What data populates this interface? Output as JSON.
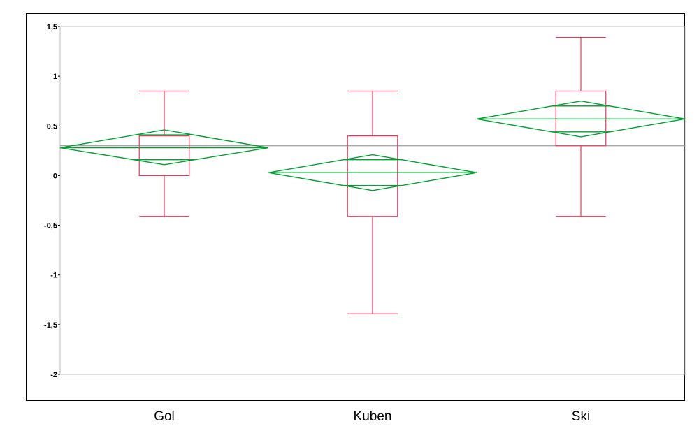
{
  "chart_data": {
    "type": "boxplot",
    "categories": [
      "Gol",
      "Kuben",
      "Ski"
    ],
    "ylim": [
      -2,
      1.5
    ],
    "yticks": [
      {
        "value": 1.5,
        "label": "1,5"
      },
      {
        "value": 1,
        "label": "1"
      },
      {
        "value": 0.5,
        "label": "0,5"
      },
      {
        "value": 0,
        "label": "0"
      },
      {
        "value": -0.5,
        "label": "-0,5"
      },
      {
        "value": -1,
        "label": "-1"
      },
      {
        "value": -1.5,
        "label": "-1,5"
      },
      {
        "value": -2,
        "label": "-2"
      }
    ],
    "grand_mean": 0.3,
    "groups": [
      {
        "name": "Gol",
        "min": -0.41,
        "q1": 0.0,
        "median": 0.4,
        "q3": 0.4,
        "max": 0.85,
        "mean": 0.28,
        "ci": [
          0.11,
          0.46
        ],
        "overlap": [
          0.16,
          0.41
        ]
      },
      {
        "name": "Kuben",
        "min": -1.39,
        "q1": -0.41,
        "median": 0.4,
        "q3": 0.4,
        "max": 0.85,
        "mean": 0.03,
        "ci": [
          -0.15,
          0.21
        ],
        "overlap": [
          -0.1,
          0.16
        ]
      },
      {
        "name": "Ski",
        "min": -0.41,
        "q1": 0.3,
        "median": 0.7,
        "q3": 0.85,
        "max": 1.39,
        "mean": 0.57,
        "ci": [
          0.39,
          0.75
        ],
        "overlap": [
          0.44,
          0.7
        ]
      }
    ],
    "colors": {
      "box": "#e8385a",
      "diamond": "#00a032",
      "mean_line": "#888888",
      "grid": "#bdbdbd"
    }
  }
}
